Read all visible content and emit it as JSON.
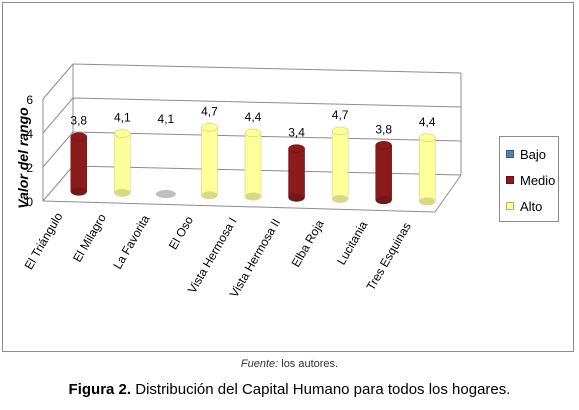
{
  "chart_data": {
    "type": "bar",
    "title": "",
    "ylabel": "Valor del rango",
    "xlabel": "",
    "ylim": [
      0,
      6
    ],
    "yticks": [
      "0",
      "2",
      "4",
      "6"
    ],
    "grid": true,
    "legend_position": "right",
    "categories": [
      "El Triángulo",
      "El Milagro",
      "La Favorita",
      "El Oso",
      "Vista Hermosa I",
      "Vista Hermosa II",
      "Elba Roja",
      "Lucitania",
      "Tres Esquinas"
    ],
    "values": [
      3.8,
      4.1,
      4.1,
      4.7,
      4.4,
      3.4,
      4.7,
      3.8,
      4.4
    ],
    "value_labels": [
      "3,8",
      "4,1",
      "4,1",
      "4,7",
      "4,4",
      "3,4",
      "4,7",
      "3,8",
      "4,4"
    ],
    "bar_series": [
      "Medio",
      "Alto",
      "Bajo",
      "Alto",
      "Alto",
      "Medio",
      "Alto",
      "Medio",
      "Alto"
    ],
    "series": [
      {
        "name": "Bajo",
        "color": "#4f81bd"
      },
      {
        "name": "Medio",
        "color": "#8b1a1a"
      },
      {
        "name": "Alto",
        "color": "#ffff99"
      }
    ]
  },
  "source": {
    "prefix": "Fuente:",
    "text": " los autores."
  },
  "caption": {
    "label": "Figura 2.",
    "text": " Distribución del Capital Humano para todos los hogares."
  }
}
